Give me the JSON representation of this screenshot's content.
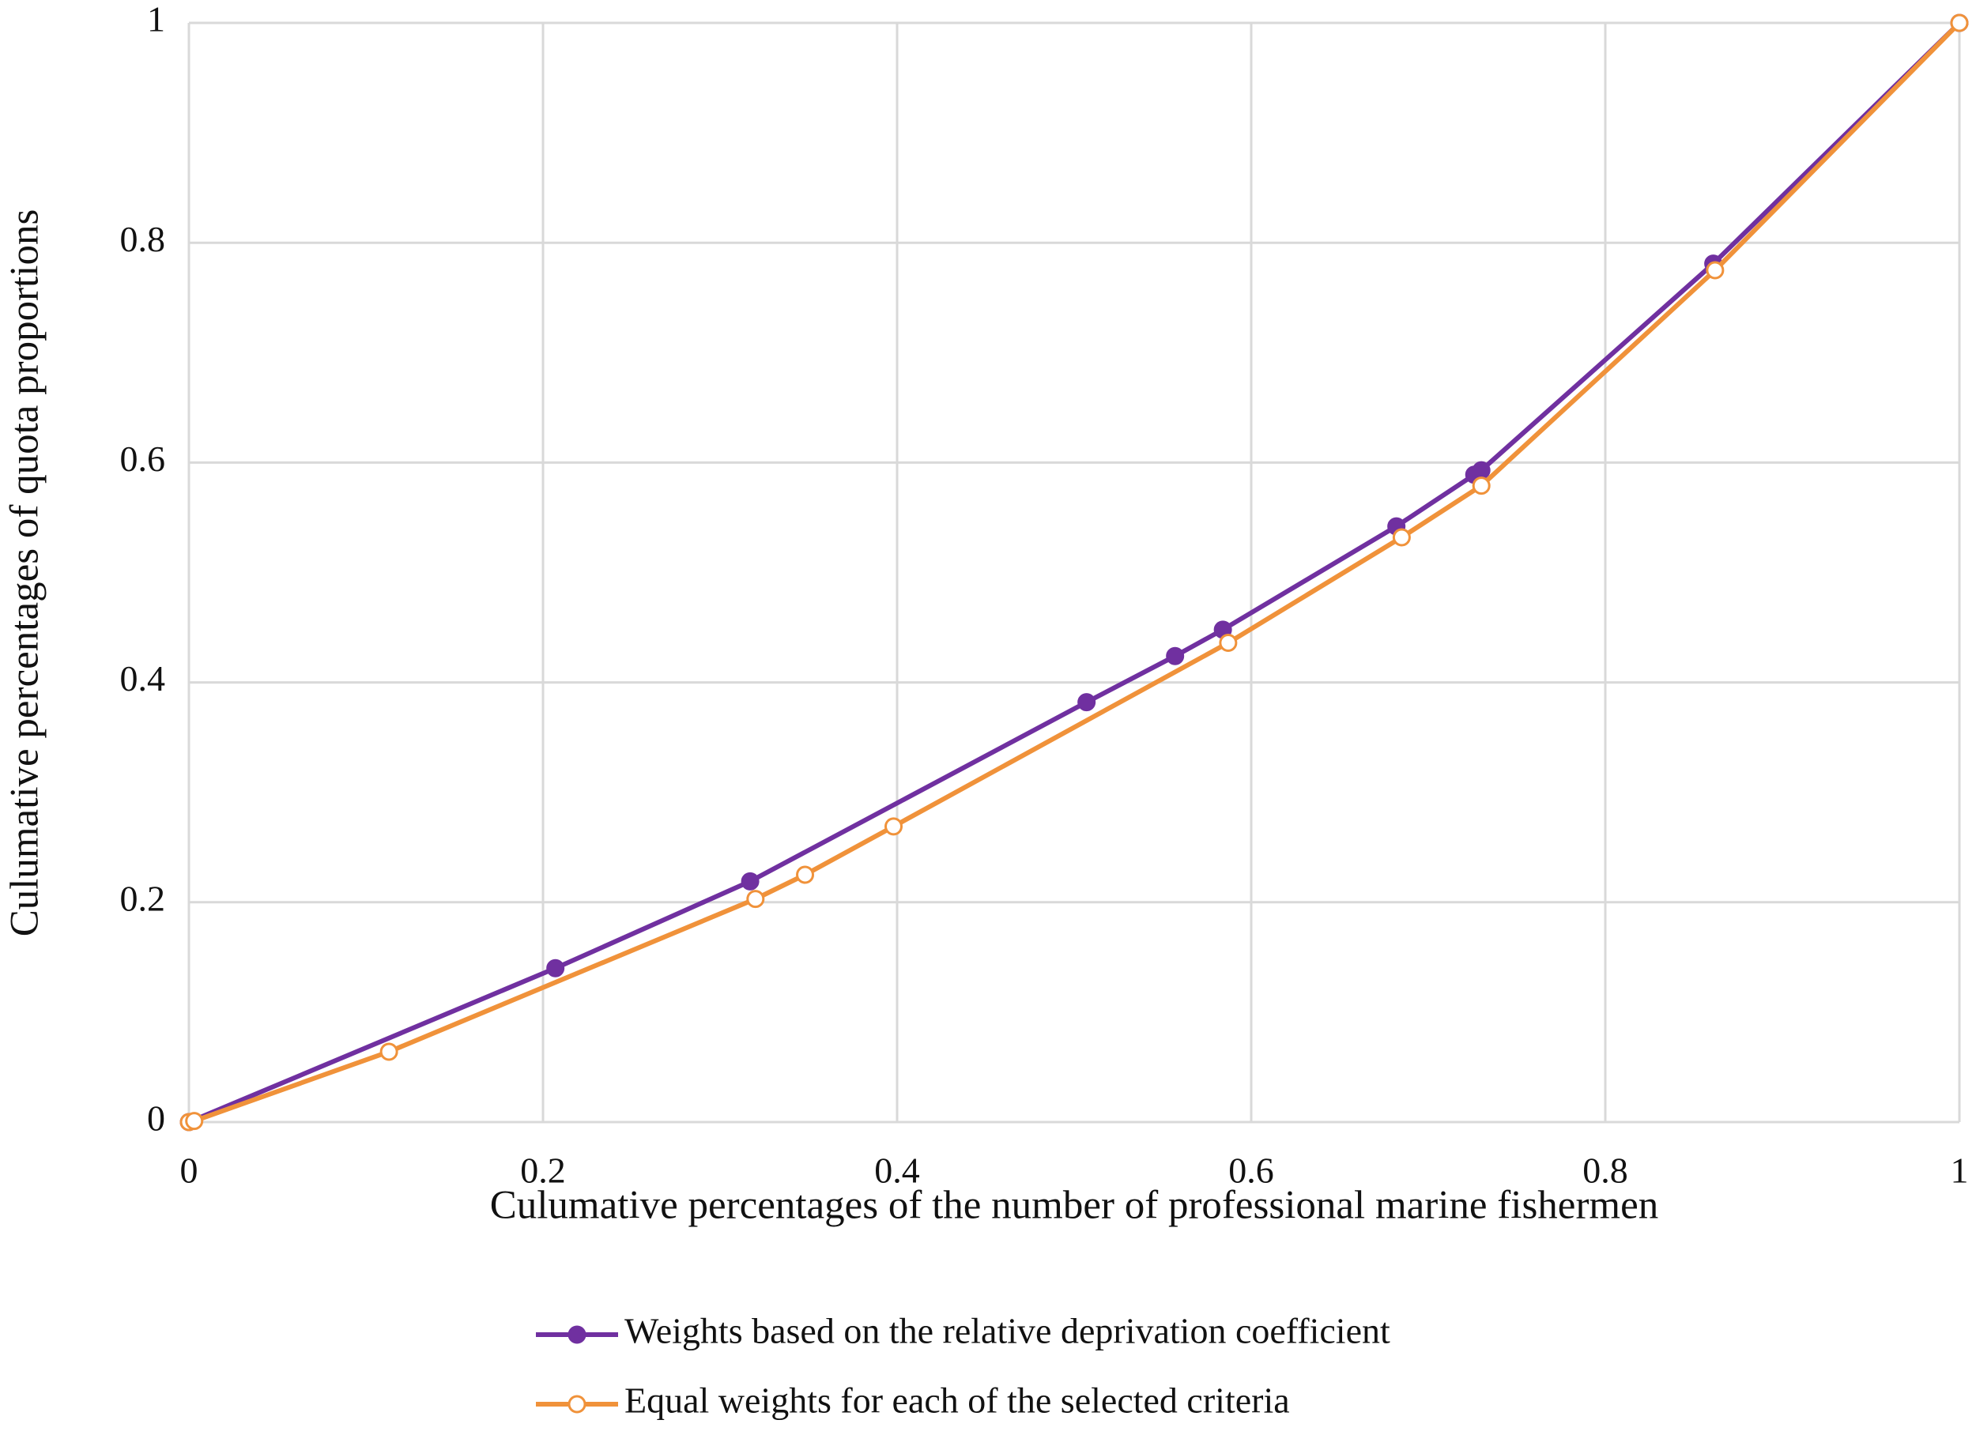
{
  "chart_data": {
    "type": "line",
    "x_label": "Culumative  percentages of the number of professional marine fishermen",
    "y_label": "Culumative  percentages of quota proportions",
    "series": [
      {
        "name": "Weights based on the relative deprivation coefficient",
        "color": "#7030a0",
        "marker": "filled",
        "x": [
          0,
          0.207,
          0.317,
          0.507,
          0.557,
          0.584,
          0.682,
          0.726,
          0.73,
          0.861,
          1
        ],
        "values": [
          0,
          0.14,
          0.219,
          0.382,
          0.424,
          0.448,
          0.542,
          0.589,
          0.593,
          0.781,
          1
        ]
      },
      {
        "name": "Equal weights for each of the selected criteria",
        "color": "#f0923a",
        "marker": "open",
        "x": [
          0,
          0.003,
          0.113,
          0.32,
          0.348,
          0.398,
          0.587,
          0.685,
          0.73,
          0.862,
          1
        ],
        "values": [
          0,
          0.001,
          0.064,
          0.203,
          0.225,
          0.269,
          0.436,
          0.532,
          0.579,
          0.775,
          1
        ]
      }
    ],
    "xlim": [
      0,
      1
    ],
    "ylim": [
      0,
      1
    ],
    "xticks": [
      0,
      0.2,
      0.4,
      0.6,
      0.8,
      1
    ],
    "yticks": [
      0,
      0.2,
      0.4,
      0.6,
      0.8,
      1
    ],
    "grid": true,
    "legend": "bottom"
  }
}
